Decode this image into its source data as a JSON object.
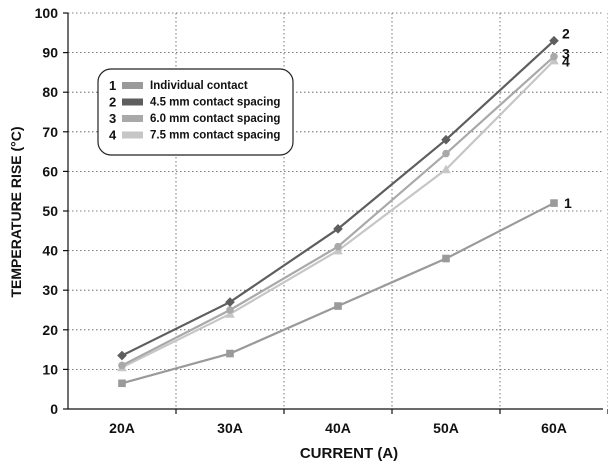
{
  "chart_data": {
    "type": "line",
    "xlabel": "CURRENT (A)",
    "ylabel": "TEMPERATURE RISE (°C)",
    "categories": [
      "20A",
      "30A",
      "40A",
      "50A",
      "60A"
    ],
    "ylim": [
      0,
      100
    ],
    "yticks": [
      0,
      10,
      20,
      30,
      40,
      50,
      60,
      70,
      80,
      90,
      100
    ],
    "grid": true,
    "legend_position": "top-left",
    "series": [
      {
        "id": "1",
        "name": "Individual contact",
        "color": "#9a9a9a",
        "marker": "square",
        "values": [
          6.5,
          14,
          26,
          38,
          52
        ]
      },
      {
        "id": "2",
        "name": "4.5 mm contact spacing",
        "color": "#5e5e5e",
        "marker": "diamond",
        "values": [
          13.5,
          27,
          45.5,
          68,
          93
        ]
      },
      {
        "id": "3",
        "name": "6.0 mm contact spacing",
        "color": "#a9a9a9",
        "marker": "circle",
        "values": [
          11,
          25,
          41,
          64.5,
          89
        ]
      },
      {
        "id": "4",
        "name": "7.5 mm contact spacing",
        "color": "#c6c6c6",
        "marker": "triangle",
        "values": [
          10.5,
          24,
          40,
          60.5,
          88
        ]
      }
    ],
    "end_labels": [
      {
        "series": "1",
        "text": "1"
      },
      {
        "series": "2",
        "text": "2"
      },
      {
        "series": "3",
        "text": "3"
      },
      {
        "series": "4",
        "text": "4"
      }
    ]
  }
}
